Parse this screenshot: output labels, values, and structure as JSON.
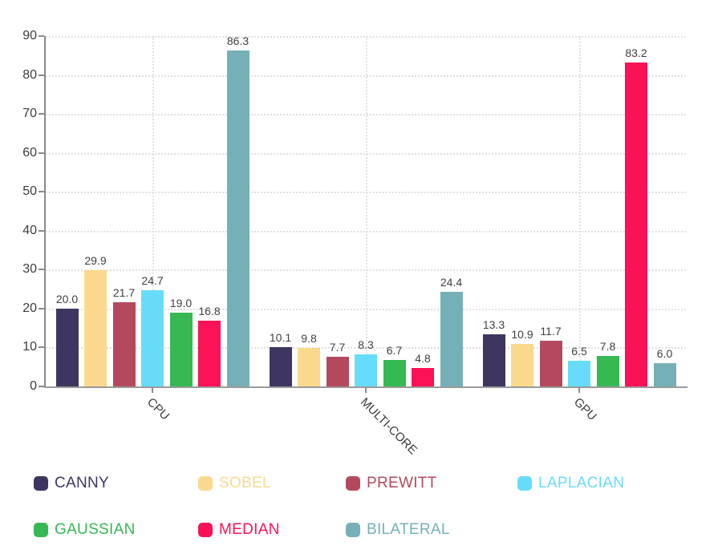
{
  "chart_data": {
    "type": "bar",
    "title": "",
    "categories": [
      "CPU",
      "MULTI-CORE",
      "GPU"
    ],
    "series": [
      {
        "name": "CANNY",
        "color": "#3e3561",
        "values": [
          20.0,
          10.1,
          13.3
        ]
      },
      {
        "name": "SOBEL",
        "color": "#fad98e",
        "values": [
          29.9,
          9.8,
          10.9
        ]
      },
      {
        "name": "PREWITT",
        "color": "#b4495e",
        "values": [
          21.7,
          7.7,
          11.7
        ]
      },
      {
        "name": "LAPLACIAN",
        "color": "#67dcfa",
        "values": [
          24.7,
          8.3,
          6.5
        ]
      },
      {
        "name": "GAUSSIAN",
        "color": "#36b853",
        "values": [
          19.0,
          6.7,
          7.8
        ]
      },
      {
        "name": "MEDIAN",
        "color": "#fb1155",
        "values": [
          16.8,
          4.8,
          83.2
        ]
      },
      {
        "name": "BILATERAL",
        "color": "#75b0b8",
        "values": [
          86.3,
          24.4,
          6.0
        ]
      }
    ],
    "value_labels": [
      [
        "20.0",
        "10.1",
        "13.3"
      ],
      [
        "29.9",
        "9.8",
        "10.9"
      ],
      [
        "21.7",
        "7.7",
        "11.7"
      ],
      [
        "24.7",
        "8.3",
        "6.5"
      ],
      [
        "19.0",
        "6.7",
        "7.8"
      ],
      [
        "16.8",
        "4.8",
        "83.2"
      ],
      [
        "86.3",
        "24.4",
        "6.0"
      ]
    ],
    "xlabel": "",
    "ylabel": "",
    "ylim": [
      0,
      90
    ],
    "ytick_step": 10,
    "yticks": [
      "0",
      "10",
      "20",
      "30",
      "40",
      "50",
      "60",
      "70",
      "80",
      "90"
    ],
    "grid": true,
    "legend_position": "bottom"
  },
  "style": {
    "background": "#ffffff",
    "axis_color": "#8a8a8a",
    "grid_color": "#e0e0e0",
    "tick_label_color": "#3c3c3c",
    "value_label_color": "#3f3f3f"
  }
}
